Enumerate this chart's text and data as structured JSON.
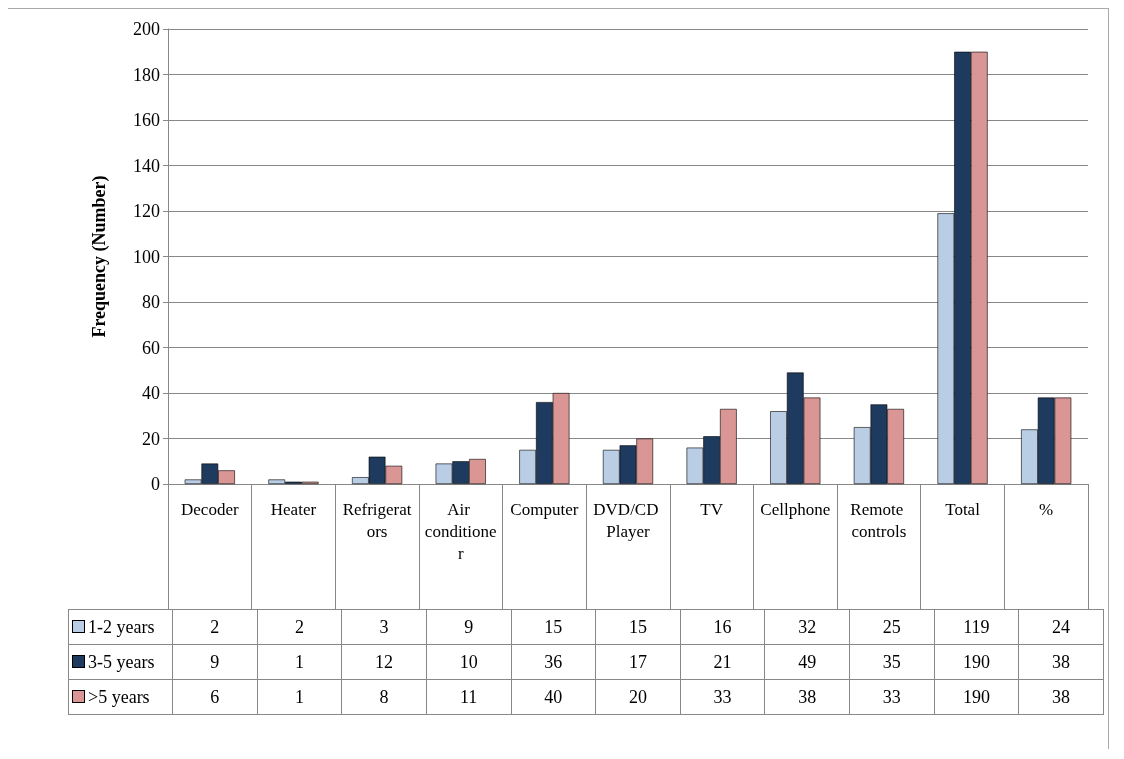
{
  "chart_data": {
    "type": "bar",
    "ylabel": "Frequency (Number)",
    "categories": [
      "Decoder",
      "Heater",
      "Refrigerators",
      "Air conditioner",
      "Computer",
      "DVD/CD Player",
      "TV",
      "Cellphone",
      "Remote controls",
      "Total",
      "%"
    ],
    "series": [
      {
        "name": "1-2 years",
        "color": "#b9cde5",
        "values": [
          2,
          2,
          3,
          9,
          15,
          15,
          16,
          32,
          25,
          119,
          24
        ]
      },
      {
        "name": "3-5 years",
        "color": "#1f3a5f",
        "values": [
          9,
          1,
          12,
          10,
          36,
          17,
          21,
          49,
          35,
          190,
          38
        ]
      },
      {
        "name": ">5 years",
        "color": "#d99694",
        "values": [
          6,
          1,
          8,
          11,
          40,
          20,
          33,
          38,
          33,
          190,
          38
        ]
      }
    ],
    "ylim": [
      0,
      200
    ],
    "yticks": [
      0,
      20,
      40,
      60,
      80,
      100,
      120,
      140,
      160,
      180,
      200
    ],
    "grid": "y",
    "legend": "bottom left",
    "data_labels": true
  }
}
